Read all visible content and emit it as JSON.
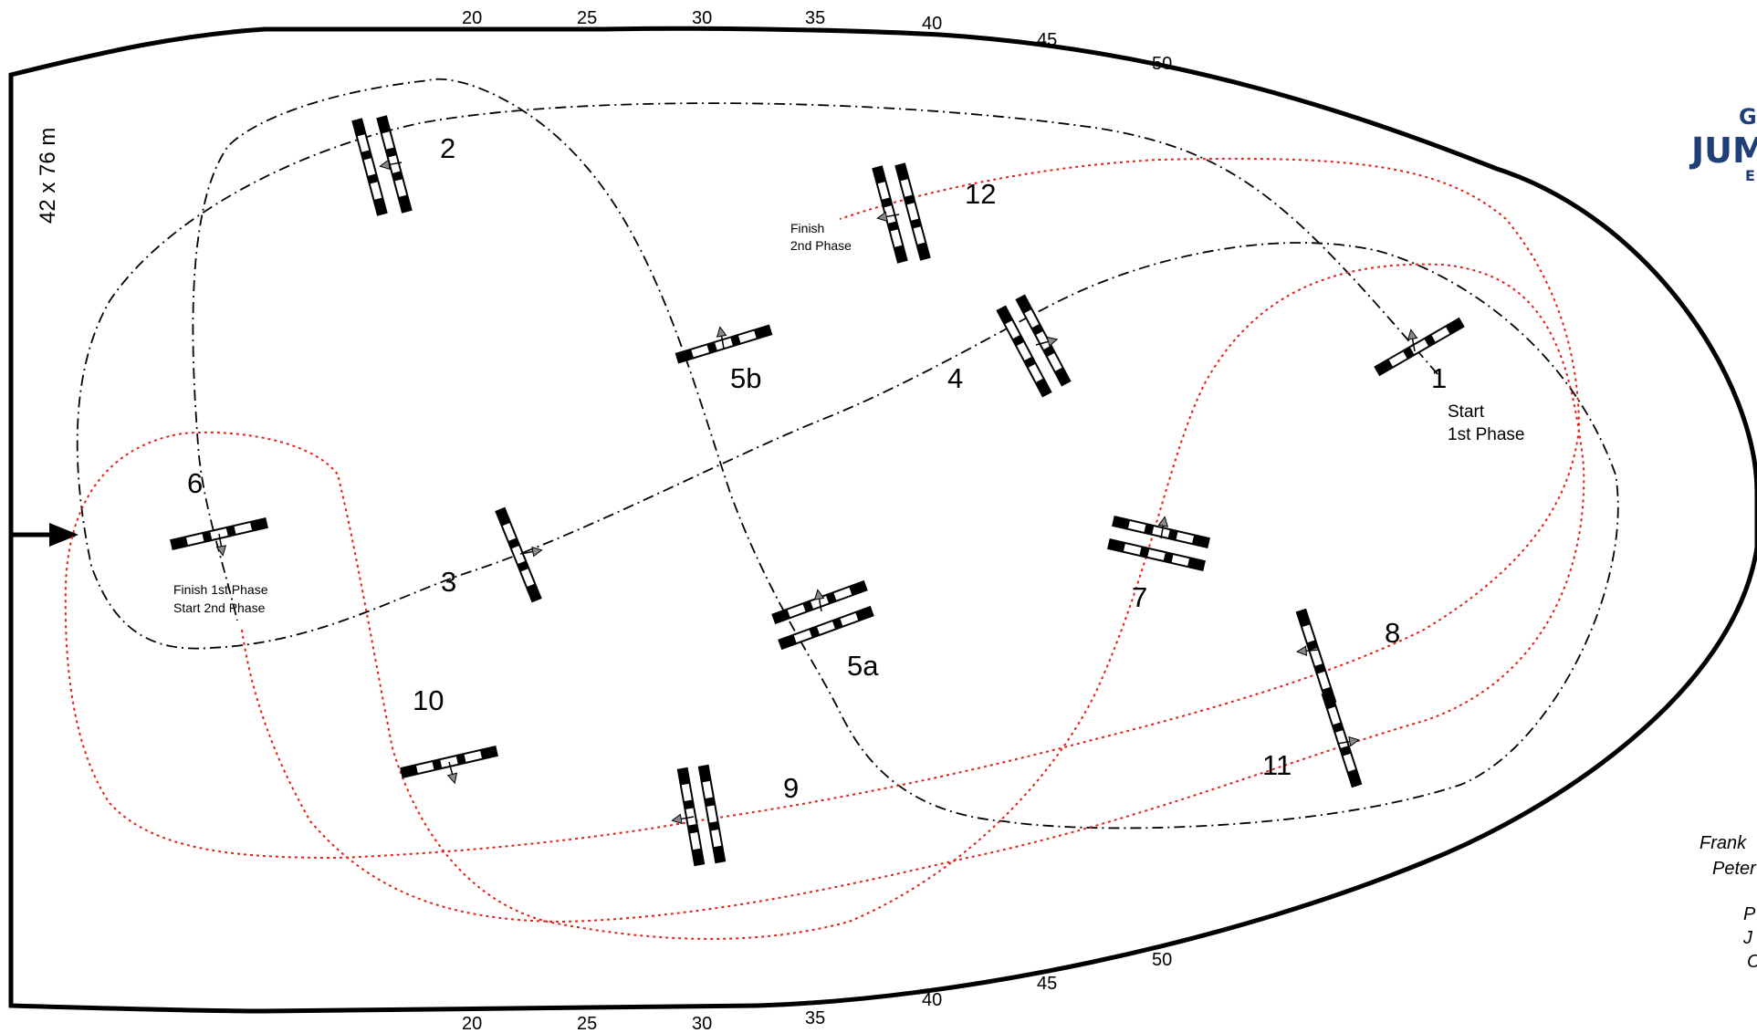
{
  "arena": {
    "dimensions_label": "42 x 76 m",
    "top_ticks": [
      "20",
      "25",
      "30",
      "35",
      "40",
      "45",
      "50"
    ],
    "bottom_ticks": [
      "20",
      "25",
      "30",
      "35",
      "40",
      "45",
      "50"
    ]
  },
  "course": {
    "fence_numbers": [
      "1",
      "2",
      "3",
      "4",
      "5a",
      "5b",
      "6",
      "7",
      "8",
      "9",
      "10",
      "11",
      "12"
    ],
    "notes": {
      "start_phase1_line1": "Start",
      "start_phase1_line2": "1st Phase",
      "finish_phase1": "Finish 1st Phase",
      "start_phase2": "Start   2nd Phase",
      "finish_phase2_line1": "Finish",
      "finish_phase2_line2": "2nd Phase"
    },
    "route_colors": {
      "phase1": "#000000",
      "phase2": "#e0221a"
    }
  },
  "branding": {
    "logo_top": "G",
    "logo_main": "JUMI",
    "logo_sub": "E",
    "accent": "#1f3f78"
  },
  "credits": [
    "Frank",
    "Peter",
    "P",
    "J",
    "C"
  ]
}
